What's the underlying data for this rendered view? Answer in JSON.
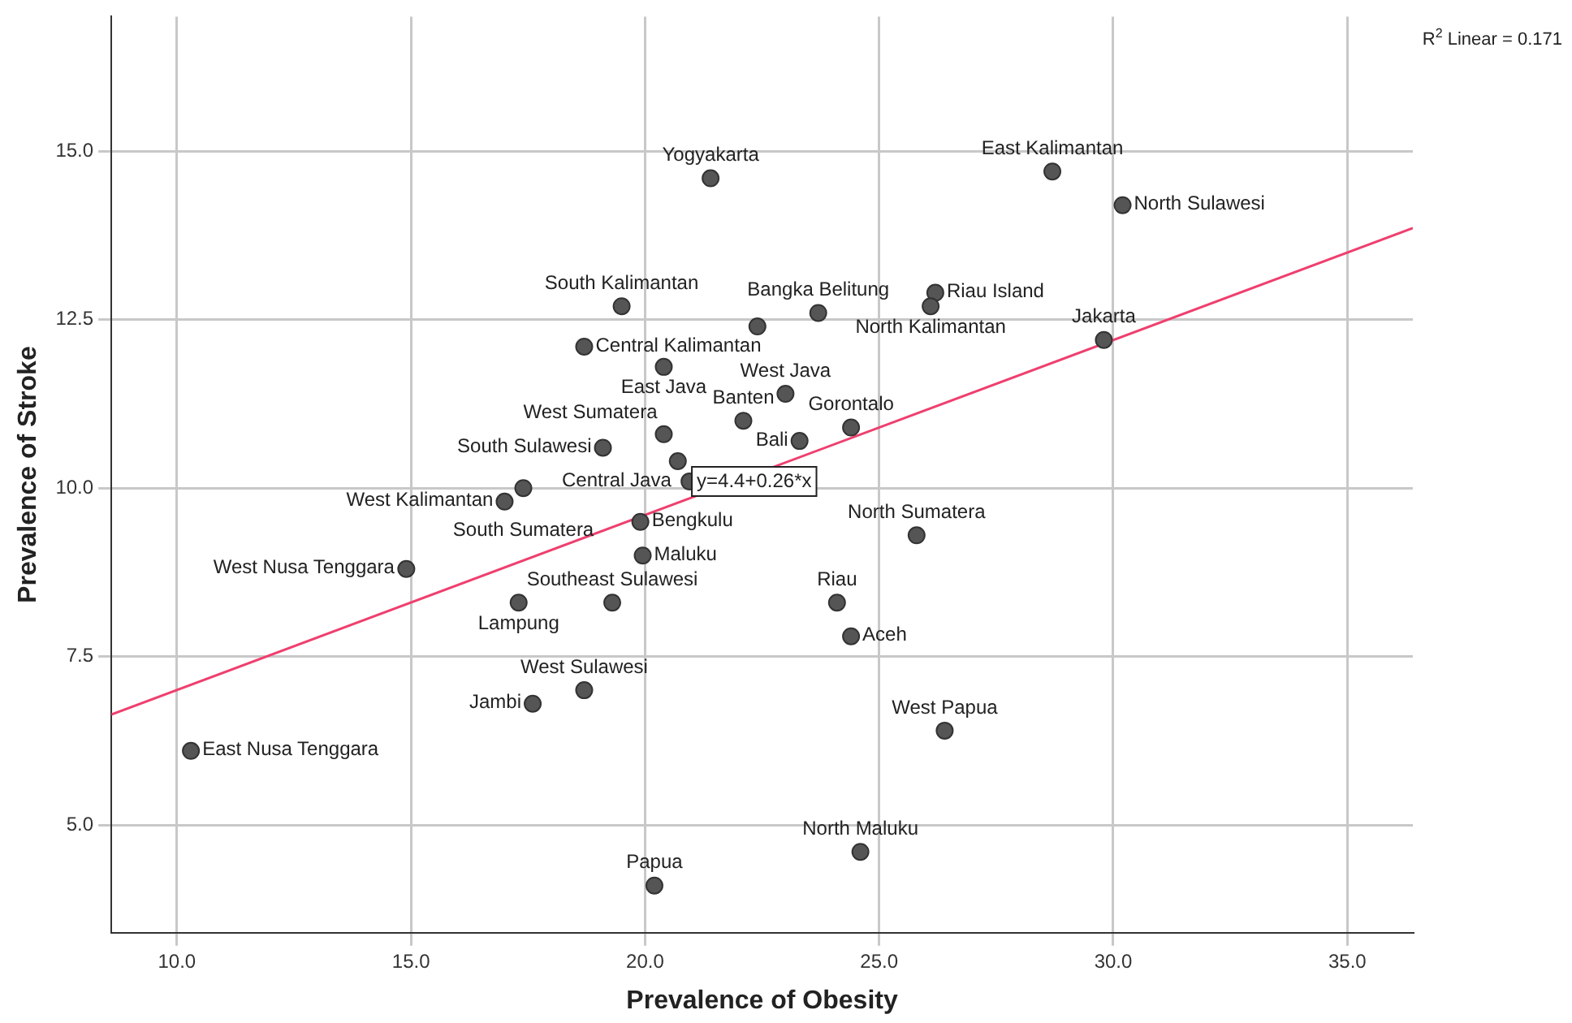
{
  "chart_data": {
    "type": "scatter",
    "xlabel": "Prevalence of Obesity",
    "ylabel": "Prevalence of Stroke",
    "xlim": [
      8.6,
      36.4
    ],
    "ylim": [
      3.4,
      17.0
    ],
    "xticks": [
      {
        "value": 10,
        "label": "10.0"
      },
      {
        "value": 15,
        "label": "15.0"
      },
      {
        "value": 20,
        "label": "20.0"
      },
      {
        "value": 25,
        "label": "25.0"
      },
      {
        "value": 30,
        "label": "30.0"
      },
      {
        "value": 35,
        "label": "35.0"
      }
    ],
    "yticks": [
      {
        "value": 5,
        "label": "5.0"
      },
      {
        "value": 7.5,
        "label": "7.5"
      },
      {
        "value": 10,
        "label": "10.0"
      },
      {
        "value": 12.5,
        "label": "12.5"
      },
      {
        "value": 15,
        "label": "15.0"
      }
    ],
    "grid": true,
    "legend": false,
    "series": [
      {
        "color": "#555555",
        "marker": "circle",
        "x": [
          21.4,
          28.7,
          30.2,
          19.5,
          23.7,
          22.4,
          26.2,
          26.1,
          29.8,
          18.7,
          20.4,
          23.0,
          22.1,
          24.4,
          20.4,
          23.3,
          19.1,
          20.7,
          20.95,
          17.4,
          17.0,
          19.9,
          19.95,
          14.9,
          17.3,
          19.3,
          25.8,
          24.1,
          24.4,
          18.7,
          17.6,
          26.4,
          10.3,
          24.6,
          20.2
        ],
        "values": [
          14.6,
          14.7,
          14.2,
          12.7,
          12.6,
          12.4,
          12.9,
          12.7,
          12.2,
          12.1,
          11.8,
          11.4,
          11.0,
          10.9,
          10.8,
          10.7,
          10.6,
          10.4,
          10.1,
          10.0,
          9.8,
          9.5,
          9.0,
          8.8,
          8.3,
          8.3,
          9.3,
          8.3,
          7.8,
          7.0,
          6.8,
          6.4,
          6.1,
          4.6,
          4.1
        ],
        "value_labels": [
          "Yogyakarta",
          "East Kalimantan",
          "North Sulawesi",
          "South Kalimantan",
          "Bangka Belitung",
          null,
          "Riau Island",
          "North Kalimantan",
          "Jakarta",
          "Central Kalimantan",
          "East Java",
          "West Java",
          "Banten",
          "Gorontalo",
          "West Sumatera",
          "Bali",
          "South Sulawesi",
          "Central Java",
          null,
          "South Sumatera",
          "West Kalimantan",
          "Bengkulu",
          "Maluku",
          "West Nusa Tenggara",
          "Lampung",
          "Southeast Sulawesi",
          "North Sumatera",
          "Riau",
          "Aceh",
          "West Sulawesi",
          "Jambi",
          "West Papua",
          "East Nusa Tenggara",
          "North Maluku",
          "Papua"
        ]
      },
      {
        "type": "line",
        "color": "#ef3f6e",
        "x": [
          8.6,
          36.4
        ],
        "values": [
          6.64,
          13.86
        ]
      }
    ],
    "annotations": [
      {
        "text": "y=4.4+0.26*x",
        "x": 21.0,
        "y": 10.1
      },
      "R$^{2}$ Linear = 0.171"
    ]
  }
}
